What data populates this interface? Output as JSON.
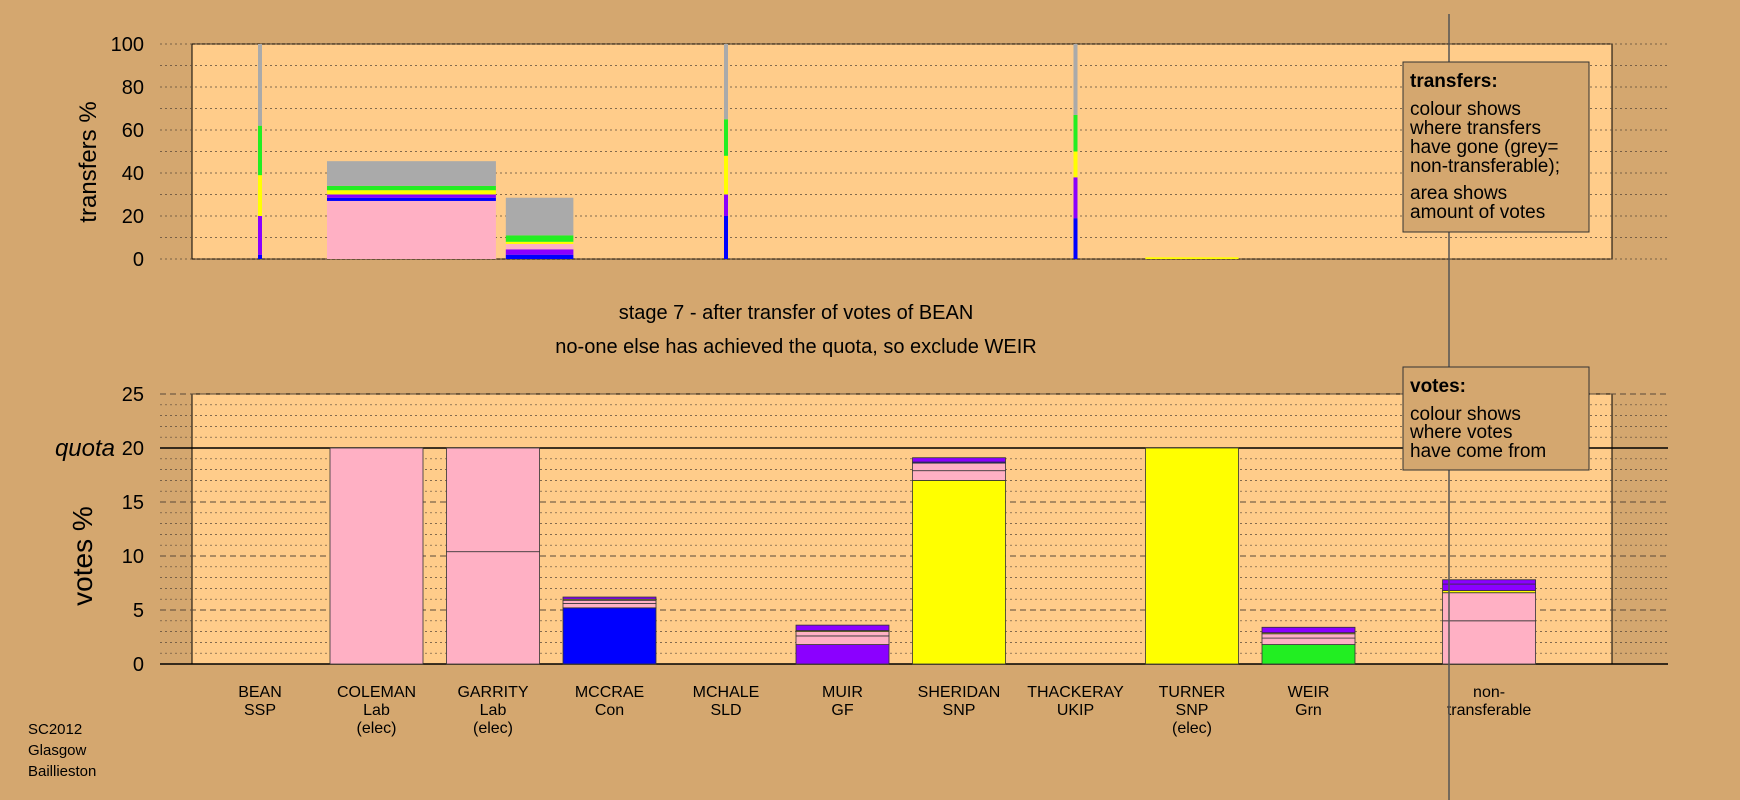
{
  "colors": {
    "background": "#D4A76F",
    "plot_area": "#FFCC8A",
    "Lab": "#FFB0C4",
    "SNP": "#FFFF00",
    "Con": "#0000FF",
    "GF": "#8B00FF",
    "Grn": "#22EE22",
    "SSP": "#FF3333",
    "non_transferable": "#AAAAAA"
  },
  "title_line1": "stage 7 - after transfer of votes of BEAN",
  "title_line2": "no-one else has achieved the quota, so exclude WEIR",
  "footer": [
    "SC2012",
    "Glasgow",
    "Baillieston"
  ],
  "chart_data": [
    {
      "type": "bar",
      "name": "transfers",
      "ylabel": "transfers %",
      "ylim": [
        0,
        100
      ],
      "yticks": [
        0,
        20,
        40,
        60,
        80,
        100
      ],
      "legend": {
        "title": "transfers:",
        "lines": [
          "colour shows",
          "where transfers",
          "have gone (grey=",
          "non-transferable);",
          "",
          "area shows",
          "amount of votes"
        ],
        "placement": "top-right"
      },
      "bars": [
        {
          "column": 0,
          "kind": "thin",
          "segments": [
            {
              "color": "Con",
              "value": 2
            },
            {
              "color": "GF",
              "value": 18
            },
            {
              "color": "SNP",
              "value": 19
            },
            {
              "color": "Grn",
              "value": 23
            },
            {
              "color": "non_transferable",
              "value": 38
            }
          ]
        },
        {
          "column": 1.3,
          "kind": "wide",
          "width": 1.45,
          "segments": [
            {
              "color": "Lab",
              "value": 27
            },
            {
              "color": "Con",
              "value": 1.5
            },
            {
              "color": "GF",
              "value": 1.5
            },
            {
              "color": "SNP",
              "value": 2
            },
            {
              "color": "Grn",
              "value": 2
            },
            {
              "color": "non_transferable",
              "value": 11.5
            }
          ]
        },
        {
          "column": 2.4,
          "kind": "wide",
          "width": 0.58,
          "segments": [
            {
              "color": "Con",
              "value": 2
            },
            {
              "color": "GF",
              "value": 2.5
            },
            {
              "color": "Lab",
              "value": 2.5
            },
            {
              "color": "SNP",
              "value": 1
            },
            {
              "color": "Grn",
              "value": 3
            },
            {
              "color": "non_transferable",
              "value": 17.5
            }
          ]
        },
        {
          "column": 4,
          "kind": "thin",
          "segments": [
            {
              "color": "Con",
              "value": 20
            },
            {
              "color": "GF",
              "value": 10
            },
            {
              "color": "SNP",
              "value": 18
            },
            {
              "color": "Grn",
              "value": 17
            },
            {
              "color": "non_transferable",
              "value": 35
            }
          ]
        },
        {
          "column": 7,
          "kind": "thin",
          "segments": [
            {
              "color": "Con",
              "value": 19
            },
            {
              "color": "GF",
              "value": 19
            },
            {
              "color": "SNP",
              "value": 12
            },
            {
              "color": "Grn",
              "value": 17
            },
            {
              "color": "non_transferable",
              "value": 33
            }
          ]
        },
        {
          "column": 8,
          "kind": "wide",
          "width": 0.8,
          "segments": [
            {
              "color": "SNP",
              "value": 0.8
            }
          ]
        }
      ]
    },
    {
      "type": "bar",
      "name": "votes",
      "ylabel": "votes %",
      "ylim": [
        0,
        25
      ],
      "yticks": [
        0,
        5,
        10,
        15,
        20,
        25
      ],
      "quota": 20,
      "quota_label": "quota",
      "legend": {
        "title": "votes:",
        "lines": [
          "colour shows",
          "where votes",
          "have come from"
        ],
        "placement": "top-right"
      },
      "candidates": [
        {
          "name": "BEAN",
          "party": "SSP",
          "status": "",
          "segments": []
        },
        {
          "name": "COLEMAN",
          "party": "Lab",
          "status": "(elec)",
          "segments": [
            {
              "color": "Lab",
              "value": 20
            }
          ]
        },
        {
          "name": "GARRITY",
          "party": "Lab",
          "status": "(elec)",
          "segments": [
            {
              "color": "Lab",
              "value": 10.4
            },
            {
              "color": "Lab",
              "value": 9.6
            }
          ]
        },
        {
          "name": "MCCRAE",
          "party": "Con",
          "status": "",
          "segments": [
            {
              "color": "Con",
              "value": 5.2
            },
            {
              "color": "Lab",
              "value": 0.4
            },
            {
              "color": "Lab",
              "value": 0.3
            },
            {
              "color": "SNP",
              "value": 0.1
            },
            {
              "color": "GF",
              "value": 0.2
            }
          ]
        },
        {
          "name": "MCHALE",
          "party": "SLD",
          "status": "",
          "segments": []
        },
        {
          "name": "MUIR",
          "party": "GF",
          "status": "",
          "segments": [
            {
              "color": "GF",
              "value": 1.8
            },
            {
              "color": "Lab",
              "value": 0.8
            },
            {
              "color": "Lab",
              "value": 0.4
            },
            {
              "color": "SNP",
              "value": 0.1
            },
            {
              "color": "GF",
              "value": 0.5
            }
          ]
        },
        {
          "name": "SHERIDAN",
          "party": "SNP",
          "status": "",
          "segments": [
            {
              "color": "SNP",
              "value": 17
            },
            {
              "color": "Lab",
              "value": 0.9
            },
            {
              "color": "Lab",
              "value": 0.7
            },
            {
              "color": "Con",
              "value": 0.1
            },
            {
              "color": "GF",
              "value": 0.4
            }
          ]
        },
        {
          "name": "THACKERAY",
          "party": "UKIP",
          "status": "",
          "segments": []
        },
        {
          "name": "TURNER",
          "party": "SNP",
          "status": "(elec)",
          "segments": [
            {
              "color": "SNP",
              "value": 20
            }
          ]
        },
        {
          "name": "WEIR",
          "party": "Grn",
          "status": "",
          "segments": [
            {
              "color": "Grn",
              "value": 1.8
            },
            {
              "color": "Lab",
              "value": 0.6
            },
            {
              "color": "Lab",
              "value": 0.4
            },
            {
              "color": "SNP",
              "value": 0.1
            },
            {
              "color": "GF",
              "value": 0.5
            }
          ]
        }
      ],
      "non_transferable": {
        "label": [
          "non-",
          "transferable"
        ],
        "segments": [
          {
            "color": "Lab",
            "value": 4.0
          },
          {
            "color": "Lab",
            "value": 2.6
          },
          {
            "color": "SNP",
            "value": 0.2
          },
          {
            "color": "GF",
            "value": 0.6
          },
          {
            "color": "GF",
            "value": 0.4
          }
        ]
      }
    }
  ]
}
